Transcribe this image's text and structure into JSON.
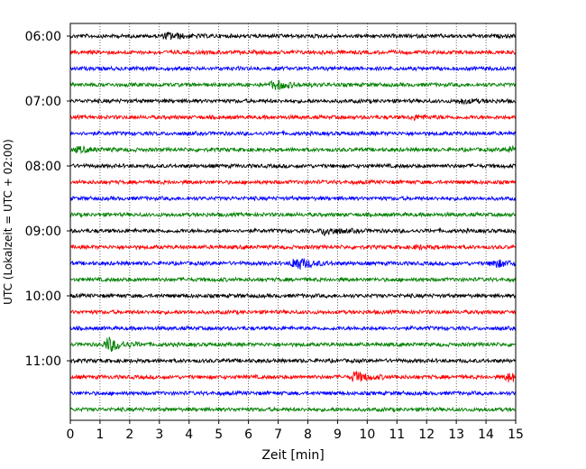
{
  "chart_data": {
    "type": "line",
    "title": "",
    "xlabel": "Zeit  [min]",
    "ylabel": "UTC (Lokalzeit = UTC + 02:00)",
    "xlim": [
      0,
      15
    ],
    "x_ticks": [
      "0",
      "1",
      "2",
      "3",
      "4",
      "5",
      "6",
      "7",
      "8",
      "9",
      "10",
      "11",
      "12",
      "13",
      "14",
      "15"
    ],
    "y_ticks": [
      "06:00",
      "07:00",
      "08:00",
      "09:00",
      "10:00",
      "11:00"
    ],
    "grid": "vertical-dotted",
    "legend": "none",
    "colors": [
      "#000000",
      "#ff0000",
      "#0000ff",
      "#008000"
    ],
    "series": [
      {
        "color_index": 0,
        "events": [
          {
            "x": 3.3,
            "amplitude": 0.7
          }
        ]
      },
      {
        "color_index": 1,
        "events": []
      },
      {
        "color_index": 2,
        "events": []
      },
      {
        "color_index": 3,
        "events": [
          {
            "x": 6.9,
            "amplitude": 1.0
          }
        ]
      },
      {
        "color_index": 0,
        "events": [
          {
            "x": 13.2,
            "amplitude": 0.4
          }
        ]
      },
      {
        "color_index": 1,
        "events": [
          {
            "x": 11.6,
            "amplitude": 0.4
          }
        ]
      },
      {
        "color_index": 2,
        "events": []
      },
      {
        "color_index": 3,
        "events": [
          {
            "x": 0.3,
            "amplitude": 0.5
          },
          {
            "x": 14.8,
            "amplitude": 0.5
          }
        ]
      },
      {
        "color_index": 0,
        "events": []
      },
      {
        "color_index": 1,
        "events": []
      },
      {
        "color_index": 2,
        "events": []
      },
      {
        "color_index": 3,
        "events": []
      },
      {
        "color_index": 0,
        "events": [
          {
            "x": 8.6,
            "amplitude": 0.8
          }
        ]
      },
      {
        "color_index": 1,
        "events": [
          {
            "x": 11.7,
            "amplitude": 0.3
          }
        ]
      },
      {
        "color_index": 2,
        "events": [
          {
            "x": 7.6,
            "amplitude": 1.4
          },
          {
            "x": 14.3,
            "amplitude": 0.8
          }
        ]
      },
      {
        "color_index": 3,
        "events": []
      },
      {
        "color_index": 0,
        "events": []
      },
      {
        "color_index": 1,
        "events": []
      },
      {
        "color_index": 2,
        "events": []
      },
      {
        "color_index": 3,
        "events": [
          {
            "x": 1.3,
            "amplitude": 1.5
          }
        ]
      },
      {
        "color_index": 0,
        "events": []
      },
      {
        "color_index": 1,
        "events": [
          {
            "x": 9.6,
            "amplitude": 1.1
          },
          {
            "x": 14.8,
            "amplitude": 0.9
          }
        ]
      },
      {
        "color_index": 2,
        "events": []
      },
      {
        "color_index": 3,
        "events": []
      }
    ]
  }
}
